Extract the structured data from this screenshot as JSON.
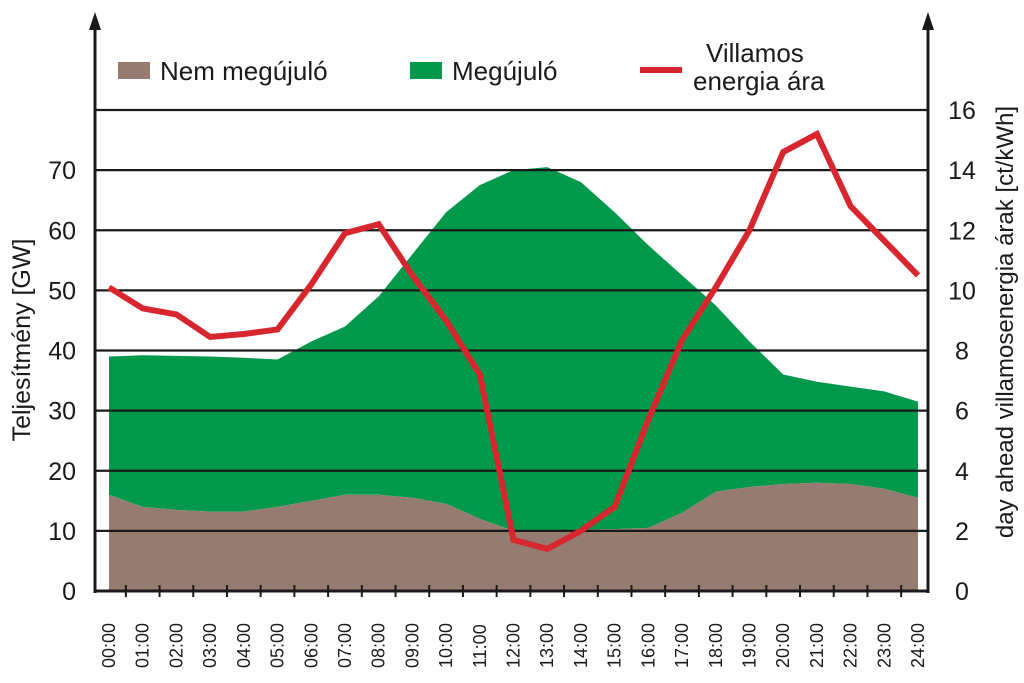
{
  "chart_data": {
    "type": "area",
    "title": "",
    "xlabel": "",
    "ylabel": "Teljesítmény [GW]",
    "y2label": "day ahead villamosenergia árak [ct/kWh]",
    "ylim": [
      0,
      80
    ],
    "y2lim": [
      0,
      16
    ],
    "yticks": [
      0,
      10,
      20,
      30,
      40,
      50,
      60,
      70
    ],
    "y2ticks": [
      0,
      2,
      4,
      6,
      8,
      10,
      12,
      14,
      16
    ],
    "grid": true,
    "legend_position": "top",
    "categories": [
      "00:00",
      "01:00",
      "02:00",
      "03:00",
      "04:00",
      "05:00",
      "06:00",
      "07:00",
      "08:00",
      "09:00",
      "10:00",
      "11:00",
      "12:00",
      "13:00",
      "14:00",
      "15:00",
      "16:00",
      "17:00",
      "18:00",
      "19:00",
      "20:00",
      "21:00",
      "22:00",
      "23:00",
      "24:00"
    ],
    "series": [
      {
        "name": "Nem megújuló",
        "type": "area",
        "axis": "left",
        "color": "#957b70",
        "values": [
          16,
          14,
          13.5,
          13.2,
          13.2,
          14,
          15,
          16,
          16,
          15.5,
          14.5,
          12,
          10,
          10,
          10.2,
          10.3,
          10.5,
          13,
          16.5,
          17.3,
          17.8,
          18,
          17.8,
          17,
          15.5
        ]
      },
      {
        "name": "Megújuló",
        "type": "area",
        "axis": "left",
        "stacked_total": true,
        "color": "#00994c",
        "values": [
          23,
          25.2,
          25.6,
          25.8,
          25.6,
          24.5,
          26.5,
          28,
          33,
          40.5,
          48.5,
          55.5,
          60,
          60.5,
          57.8,
          52.7,
          47,
          39.5,
          31,
          24.2,
          18.2,
          16.8,
          16.2,
          16.2,
          16
        ]
      },
      {
        "name": "Villamos energia ára",
        "legend_lines": [
          "Villamos",
          "energia ára"
        ],
        "type": "line",
        "axis": "right",
        "color": "#d7262d",
        "values": [
          10.1,
          9.4,
          9.2,
          8.45,
          8.55,
          8.7,
          10.2,
          11.9,
          12.2,
          10.5,
          9.0,
          7.2,
          1.7,
          1.4,
          2.0,
          2.8,
          5.7,
          8.35,
          10.1,
          12.0,
          14.6,
          15.2,
          12.8,
          11.65,
          10.5
        ]
      }
    ]
  }
}
